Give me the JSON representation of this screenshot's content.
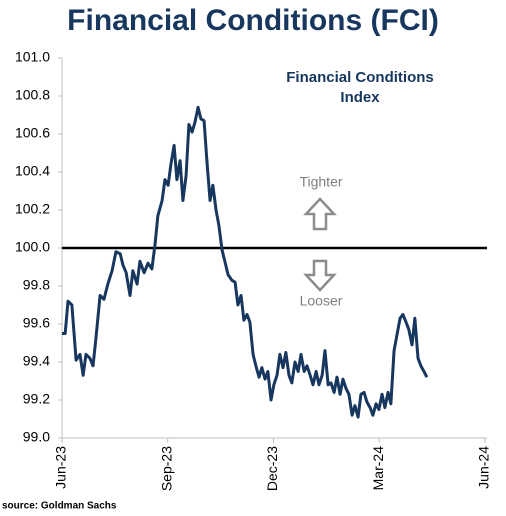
{
  "chart_data": {
    "type": "line",
    "title": "Financial Conditions (FCI)",
    "annotations": [
      "Financial Conditions",
      "Index",
      "Tighter",
      "Looser"
    ],
    "source": "source: Goldman Sachs",
    "color": "#17375e",
    "reference_line": 100,
    "xlim": [
      0,
      12
    ],
    "xticks": [
      {
        "value": 0,
        "label": "Jun-23"
      },
      {
        "value": 3,
        "label": "Sep-23"
      },
      {
        "value": 6,
        "label": "Dec-23"
      },
      {
        "value": 9,
        "label": "Mar-24"
      },
      {
        "value": 12,
        "label": "Jun-24"
      }
    ],
    "ylim": [
      99,
      101
    ],
    "yticks": [
      {
        "value": 99,
        "label": "99.0"
      },
      99.2,
      99.4,
      99.6,
      99.8,
      {
        "value": 100,
        "label": "100.0"
      },
      100.2,
      100.4,
      100.6,
      100.8,
      {
        "value": 101,
        "label": "101.0"
      }
    ],
    "x": [
      0,
      0.09,
      0.17,
      0.28,
      0.4,
      0.51,
      0.6,
      0.68,
      0.79,
      0.88,
      0.96,
      1.08,
      1.19,
      1.3,
      1.42,
      1.53,
      1.65,
      1.73,
      1.82,
      1.93,
      2.01,
      2.13,
      2.21,
      2.33,
      2.44,
      2.55,
      2.64,
      2.72,
      2.84,
      2.92,
      3.01,
      3.09,
      3.18,
      3.26,
      3.35,
      3.43,
      3.52,
      3.6,
      3.69,
      3.77,
      3.86,
      3.94,
      4.03,
      4.11,
      4.2,
      4.28,
      4.37,
      4.45,
      4.54,
      4.62,
      4.71,
      4.82,
      4.91,
      4.99,
      5.08,
      5.16,
      5.25,
      5.33,
      5.42,
      5.5,
      5.59,
      5.67,
      5.76,
      5.84,
      5.93,
      6.01,
      6.1,
      6.18,
      6.27,
      6.35,
      6.44,
      6.52,
      6.61,
      6.7,
      6.78,
      6.87,
      6.95,
      7.04,
      7.12,
      7.21,
      7.29,
      7.38,
      7.46,
      7.55,
      7.63,
      7.72,
      7.8,
      7.89,
      7.97,
      8.06,
      8.14,
      8.23,
      8.31,
      8.4,
      8.48,
      8.57,
      8.65,
      8.74,
      8.82,
      8.91,
      8.99,
      9.08,
      9.16,
      9.25,
      9.33,
      9.42,
      9.5,
      9.59,
      9.67,
      9.76,
      9.84,
      9.93,
      10.01,
      10.1,
      10.18,
      10.27,
      10.35
    ],
    "values": [
      99.55,
      99.55,
      99.72,
      99.7,
      99.41,
      99.44,
      99.33,
      99.44,
      99.42,
      99.38,
      99.52,
      99.75,
      99.73,
      99.81,
      99.88,
      99.98,
      99.97,
      99.91,
      99.87,
      99.75,
      99.88,
      99.81,
      99.93,
      99.87,
      99.92,
      99.89,
      100.02,
      100.17,
      100.25,
      100.36,
      100.33,
      100.44,
      100.54,
      100.36,
      100.46,
      100.25,
      100.38,
      100.65,
      100.61,
      100.66,
      100.74,
      100.68,
      100.67,
      100.46,
      100.25,
      100.33,
      100.2,
      100.12,
      99.99,
      99.93,
      99.86,
      99.83,
      99.82,
      99.7,
      99.75,
      99.62,
      99.65,
      99.61,
      99.44,
      99.38,
      99.32,
      99.37,
      99.31,
      99.35,
      99.2,
      99.28,
      99.33,
      99.44,
      99.37,
      99.45,
      99.33,
      99.29,
      99.4,
      99.35,
      99.44,
      99.35,
      99.38,
      99.33,
      99.28,
      99.35,
      99.28,
      99.33,
      99.46,
      99.28,
      99.29,
      99.24,
      99.32,
      99.23,
      99.31,
      99.26,
      99.23,
      99.12,
      99.17,
      99.11,
      99.23,
      99.24,
      99.19,
      99.16,
      99.12,
      99.18,
      99.15,
      99.23,
      99.16,
      99.24,
      99.18,
      99.46,
      99.54,
      99.63,
      99.65,
      99.61,
      99.57,
      99.49,
      99.63,
      99.42,
      99.38,
      99.35,
      99.32
    ]
  }
}
